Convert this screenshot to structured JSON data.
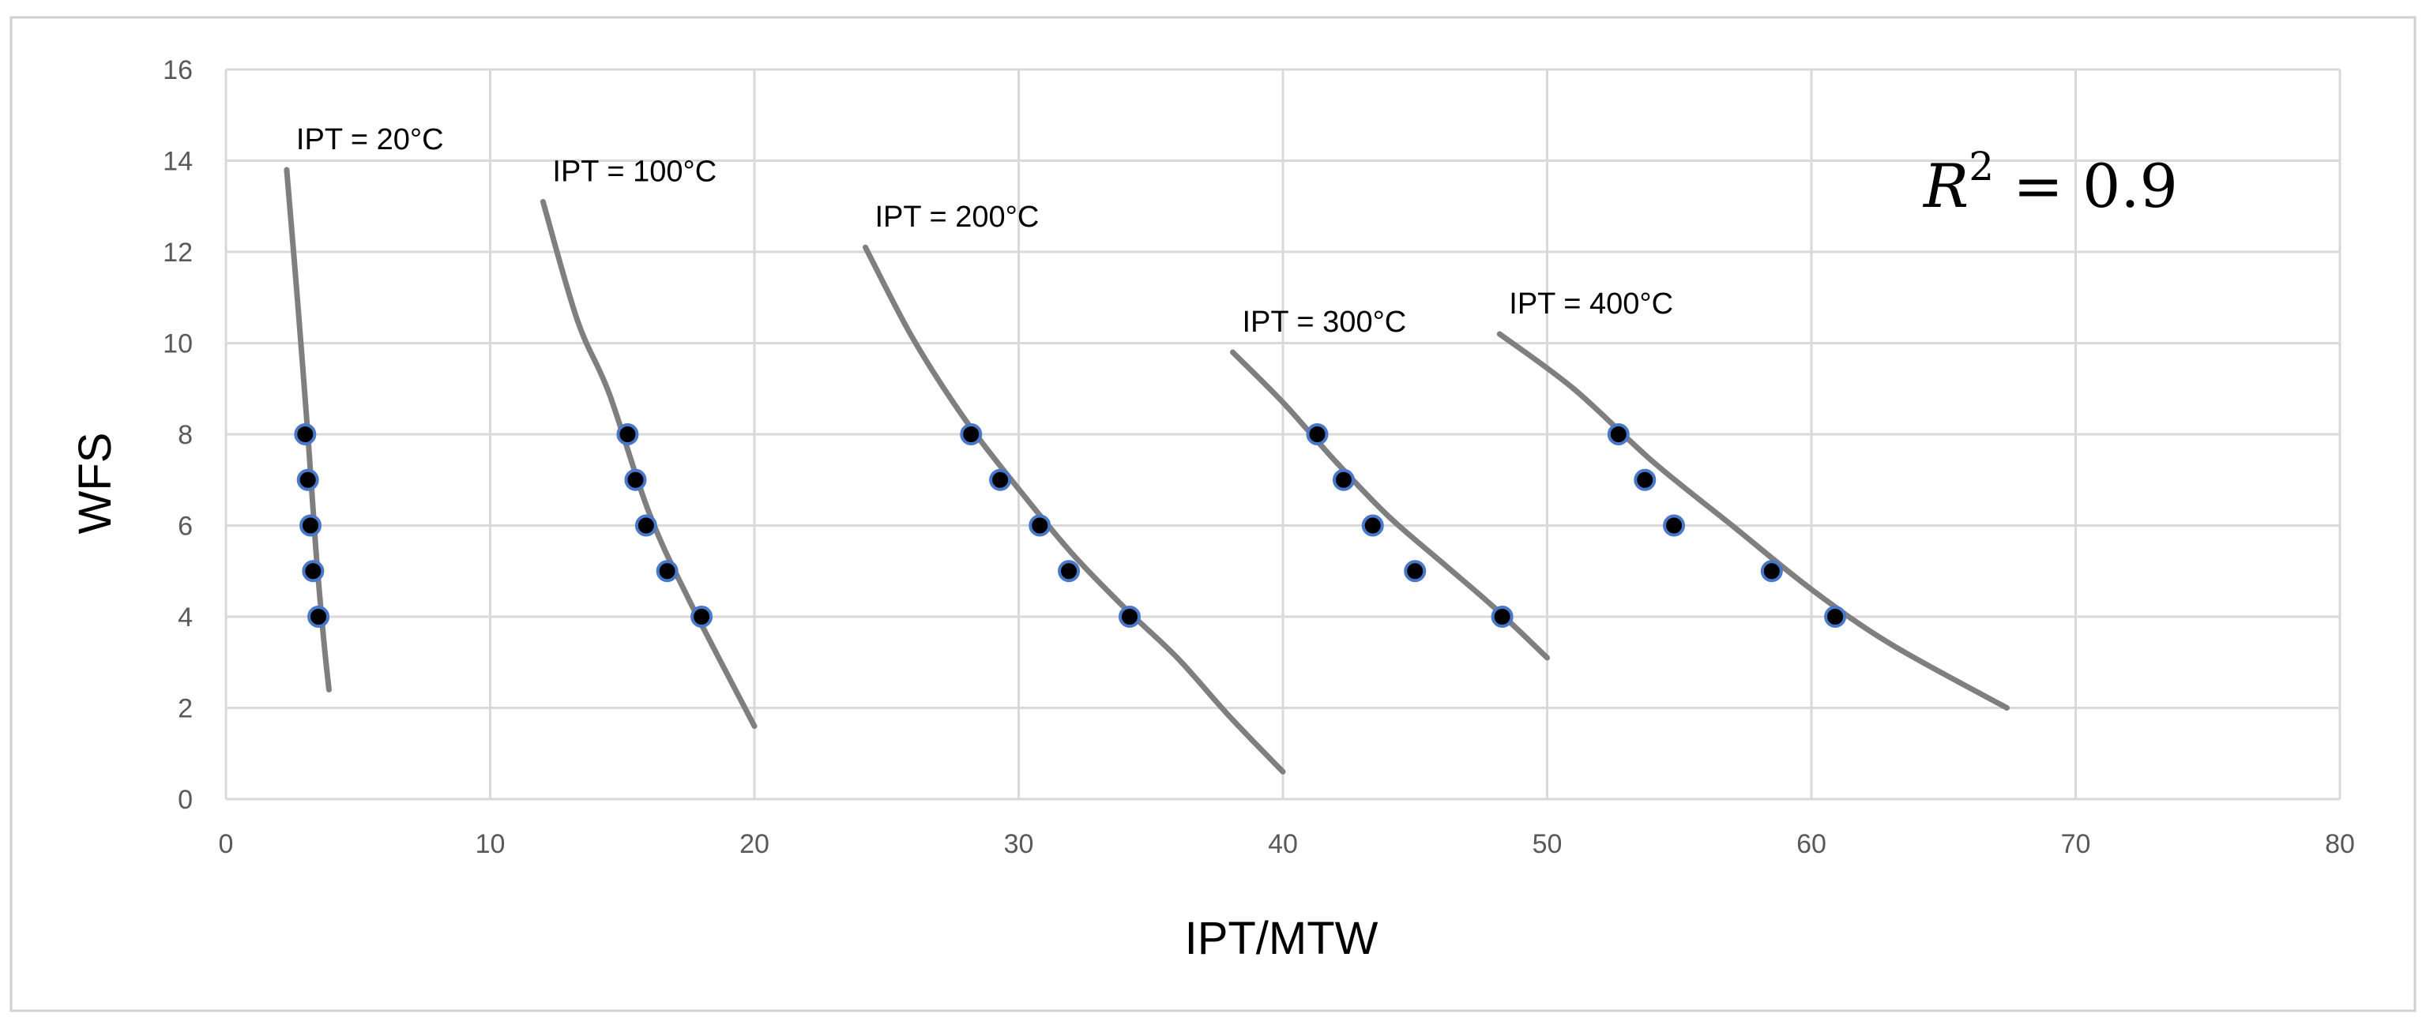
{
  "chart_data": {
    "type": "scatter",
    "title": "",
    "xlabel": "IPT/MTW",
    "ylabel": "WFS",
    "xlim": [
      0,
      80
    ],
    "ylim": [
      0,
      16
    ],
    "x_ticks": [
      0,
      10,
      20,
      30,
      40,
      50,
      60,
      70,
      80
    ],
    "y_ticks": [
      0,
      2,
      4,
      6,
      8,
      10,
      12,
      14,
      16
    ],
    "grid": true,
    "annotation": {
      "r_symbol": "R",
      "exponent": "2",
      "rest": " = 0.9"
    },
    "series": [
      {
        "name": "IPT = 20°C",
        "points": [
          [
            3.0,
            8
          ],
          [
            3.1,
            7
          ],
          [
            3.2,
            6
          ],
          [
            3.3,
            5
          ],
          [
            3.5,
            4
          ]
        ],
        "fit": [
          [
            2.3,
            13.8
          ],
          [
            2.7,
            11
          ],
          [
            3.1,
            8
          ],
          [
            3.4,
            5.5
          ],
          [
            3.7,
            3.5
          ],
          [
            3.9,
            2.4
          ]
        ]
      },
      {
        "name": "IPT = 100°C",
        "points": [
          [
            15.2,
            8
          ],
          [
            15.5,
            7
          ],
          [
            15.9,
            6
          ],
          [
            16.7,
            5
          ],
          [
            18.0,
            4
          ]
        ],
        "fit": [
          [
            12,
            13.1
          ],
          [
            13.3,
            10.5
          ],
          [
            14.5,
            8.9
          ],
          [
            16,
            6.3
          ],
          [
            17.5,
            4.4
          ],
          [
            20,
            1.6
          ]
        ]
      },
      {
        "name": "IPT = 200°C",
        "points": [
          [
            28.2,
            8
          ],
          [
            29.3,
            7
          ],
          [
            30.8,
            6
          ],
          [
            31.9,
            5
          ],
          [
            34.2,
            4
          ]
        ],
        "fit": [
          [
            24.2,
            12.1
          ],
          [
            26,
            10.1
          ],
          [
            28,
            8.3
          ],
          [
            30,
            6.8
          ],
          [
            32,
            5.4
          ],
          [
            34,
            4.2
          ],
          [
            36,
            3.1
          ],
          [
            38,
            1.8
          ],
          [
            40,
            0.6
          ]
        ]
      },
      {
        "name": "IPT = 300°C",
        "points": [
          [
            41.3,
            8
          ],
          [
            42.3,
            7
          ],
          [
            43.4,
            6
          ],
          [
            45.0,
            5
          ],
          [
            48.3,
            4
          ]
        ],
        "fit": [
          [
            38.1,
            9.8
          ],
          [
            40,
            8.7
          ],
          [
            42,
            7.4
          ],
          [
            44,
            6.2
          ],
          [
            46,
            5.2
          ],
          [
            48,
            4.2
          ],
          [
            50,
            3.1
          ]
        ]
      },
      {
        "name": "IPT = 400°C",
        "points": [
          [
            52.7,
            8
          ],
          [
            53.7,
            7
          ],
          [
            54.8,
            6
          ],
          [
            58.5,
            5
          ],
          [
            60.9,
            4
          ]
        ],
        "fit": [
          [
            48.2,
            10.2
          ],
          [
            51,
            9
          ],
          [
            54,
            7.4
          ],
          [
            57,
            6
          ],
          [
            60,
            4.6
          ],
          [
            63,
            3.4
          ],
          [
            67.4,
            2.0
          ]
        ]
      }
    ]
  }
}
